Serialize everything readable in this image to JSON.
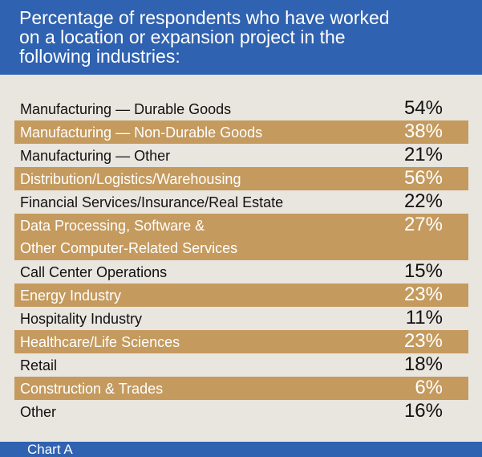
{
  "header": {
    "title_lines": [
      "Percentage of respondents who have worked",
      "on a location or expansion project in the",
      "following industries:"
    ]
  },
  "table": {
    "rows": [
      {
        "label": [
          "Manufacturing — Durable Goods"
        ],
        "value": "54%"
      },
      {
        "label": [
          "Manufacturing — Non-Durable Goods"
        ],
        "value": "38%"
      },
      {
        "label": [
          "Manufacturing — Other"
        ],
        "value": "21%"
      },
      {
        "label": [
          "Distribution/Logistics/Warehousing"
        ],
        "value": "56%"
      },
      {
        "label": [
          "Financial Services/Insurance/Real Estate"
        ],
        "value": "22%"
      },
      {
        "label": [
          "Data Processing, Software &",
          "Other Computer-Related Services"
        ],
        "value": "27%"
      },
      {
        "label": [
          "Call Center Operations"
        ],
        "value": "15%"
      },
      {
        "label": [
          "Energy Industry"
        ],
        "value": "23%"
      },
      {
        "label": [
          "Hospitality Industry"
        ],
        "value": "11%"
      },
      {
        "label": [
          "Healthcare/Life Sciences"
        ],
        "value": "23%"
      },
      {
        "label": [
          "Retail"
        ],
        "value": "18%"
      },
      {
        "label": [
          "Construction & Trades"
        ],
        "value": "6%"
      },
      {
        "label": [
          "Other"
        ],
        "value": "16%"
      }
    ]
  },
  "footer": {
    "caption": "Chart A"
  }
}
